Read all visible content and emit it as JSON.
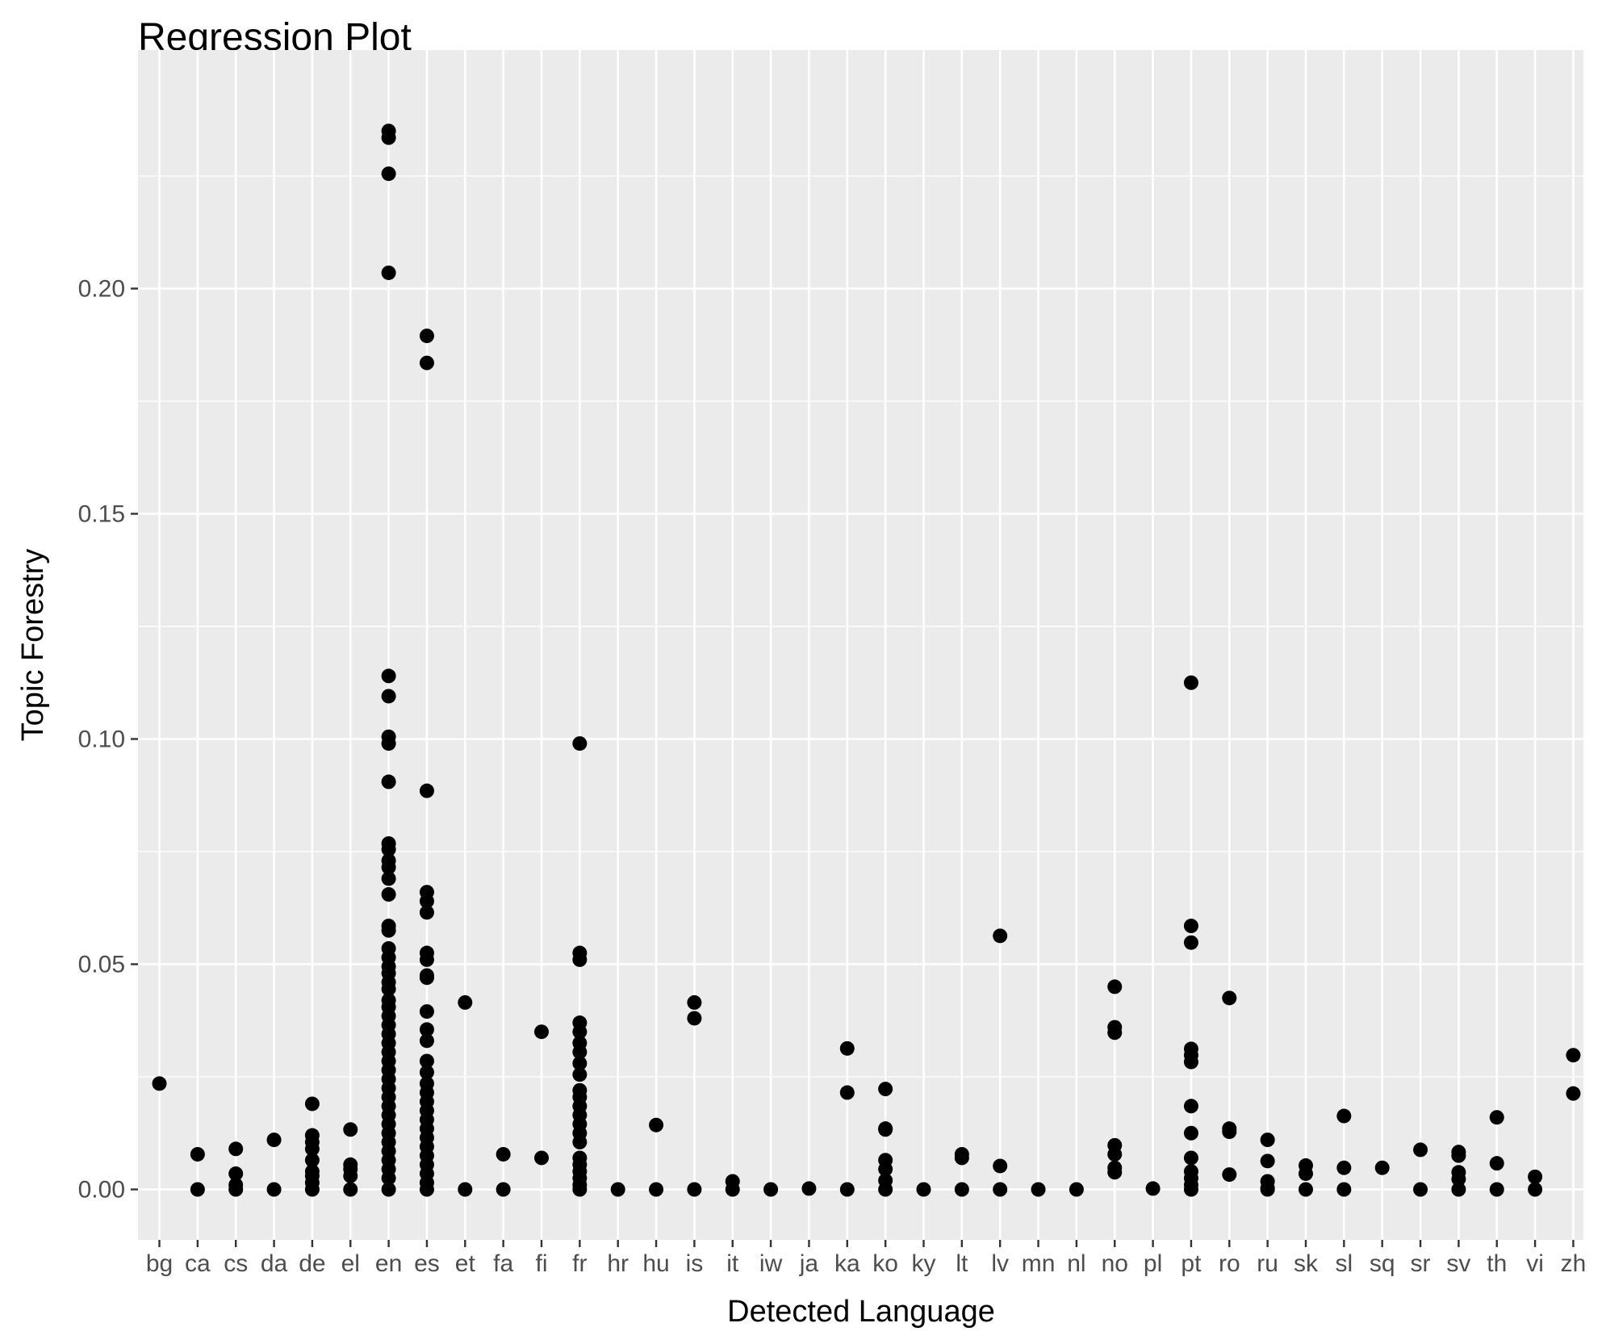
{
  "chart_data": {
    "type": "scatter",
    "title": "Regression Plot",
    "xlabel": "Detected Language",
    "ylabel": "Topic Forestry",
    "categories": [
      "bg",
      "ca",
      "cs",
      "da",
      "de",
      "el",
      "en",
      "es",
      "et",
      "fa",
      "fi",
      "fr",
      "hr",
      "hu",
      "is",
      "it",
      "iw",
      "ja",
      "ka",
      "ko",
      "ky",
      "lt",
      "lv",
      "mn",
      "nl",
      "no",
      "pl",
      "pt",
      "ro",
      "ru",
      "sk",
      "sl",
      "sq",
      "sr",
      "sv",
      "th",
      "vi",
      "zh"
    ],
    "y_ticks": [
      0.0,
      0.05,
      0.1,
      0.15,
      0.2
    ],
    "y_tick_labels": [
      "0.00",
      "0.05",
      "0.10",
      "0.15",
      "0.20"
    ],
    "ylim": [
      -0.012,
      0.246
    ],
    "grid": true,
    "colors": {
      "panel": "#ebebeb",
      "grid": "#ffffff",
      "point": "#000000",
      "tick": "#333333",
      "tick_label": "#4d4d4d"
    },
    "series": [
      {
        "points": [
          {
            "x": "bg",
            "y": 0.0235
          },
          {
            "x": "ca",
            "y": 0.0078
          },
          {
            "x": "ca",
            "y": 0.0
          },
          {
            "x": "cs",
            "y": 0.009
          },
          {
            "x": "cs",
            "y": 0.0035
          },
          {
            "x": "cs",
            "y": 0.001
          },
          {
            "x": "cs",
            "y": 0.0
          },
          {
            "x": "da",
            "y": 0.011
          },
          {
            "x": "da",
            "y": 0.0
          },
          {
            "x": "de",
            "y": 0.019
          },
          {
            "x": "de",
            "y": 0.012
          },
          {
            "x": "de",
            "y": 0.0105
          },
          {
            "x": "de",
            "y": 0.009
          },
          {
            "x": "de",
            "y": 0.0065
          },
          {
            "x": "de",
            "y": 0.004
          },
          {
            "x": "de",
            "y": 0.003
          },
          {
            "x": "de",
            "y": 0.0015
          },
          {
            "x": "de",
            "y": 0.0
          },
          {
            "x": "el",
            "y": 0.0133
          },
          {
            "x": "el",
            "y": 0.0055
          },
          {
            "x": "el",
            "y": 0.0045
          },
          {
            "x": "el",
            "y": 0.003
          },
          {
            "x": "el",
            "y": 0.0
          },
          {
            "x": "en",
            "y": 0.235
          },
          {
            "x": "en",
            "y": 0.2335
          },
          {
            "x": "en",
            "y": 0.2255
          },
          {
            "x": "en",
            "y": 0.2035
          },
          {
            "x": "en",
            "y": 0.114
          },
          {
            "x": "en",
            "y": 0.1095
          },
          {
            "x": "en",
            "y": 0.1005
          },
          {
            "x": "en",
            "y": 0.099
          },
          {
            "x": "en",
            "y": 0.0905
          },
          {
            "x": "en",
            "y": 0.0768
          },
          {
            "x": "en",
            "y": 0.0755
          },
          {
            "x": "en",
            "y": 0.073
          },
          {
            "x": "en",
            "y": 0.0715
          },
          {
            "x": "en",
            "y": 0.069
          },
          {
            "x": "en",
            "y": 0.0655
          },
          {
            "x": "en",
            "y": 0.0585
          },
          {
            "x": "en",
            "y": 0.0575
          },
          {
            "x": "en",
            "y": 0.0535
          },
          {
            "x": "en",
            "y": 0.0515
          },
          {
            "x": "en",
            "y": 0.0495
          },
          {
            "x": "en",
            "y": 0.048
          },
          {
            "x": "en",
            "y": 0.046
          },
          {
            "x": "en",
            "y": 0.0445
          },
          {
            "x": "en",
            "y": 0.042
          },
          {
            "x": "en",
            "y": 0.0405
          },
          {
            "x": "en",
            "y": 0.0385
          },
          {
            "x": "en",
            "y": 0.0365
          },
          {
            "x": "en",
            "y": 0.0345
          },
          {
            "x": "en",
            "y": 0.0325
          },
          {
            "x": "en",
            "y": 0.0305
          },
          {
            "x": "en",
            "y": 0.0285
          },
          {
            "x": "en",
            "y": 0.0265
          },
          {
            "x": "en",
            "y": 0.0245
          },
          {
            "x": "en",
            "y": 0.0225
          },
          {
            "x": "en",
            "y": 0.0205
          },
          {
            "x": "en",
            "y": 0.0185
          },
          {
            "x": "en",
            "y": 0.0165
          },
          {
            "x": "en",
            "y": 0.0145
          },
          {
            "x": "en",
            "y": 0.0125
          },
          {
            "x": "en",
            "y": 0.0105
          },
          {
            "x": "en",
            "y": 0.0085
          },
          {
            "x": "en",
            "y": 0.0065
          },
          {
            "x": "en",
            "y": 0.0045
          },
          {
            "x": "en",
            "y": 0.0025
          },
          {
            "x": "en",
            "y": 0.0
          },
          {
            "x": "es",
            "y": 0.1895
          },
          {
            "x": "es",
            "y": 0.1835
          },
          {
            "x": "es",
            "y": 0.0885
          },
          {
            "x": "es",
            "y": 0.066
          },
          {
            "x": "es",
            "y": 0.064
          },
          {
            "x": "es",
            "y": 0.0615
          },
          {
            "x": "es",
            "y": 0.0525
          },
          {
            "x": "es",
            "y": 0.051
          },
          {
            "x": "es",
            "y": 0.0475
          },
          {
            "x": "es",
            "y": 0.047
          },
          {
            "x": "es",
            "y": 0.0395
          },
          {
            "x": "es",
            "y": 0.0355
          },
          {
            "x": "es",
            "y": 0.033
          },
          {
            "x": "es",
            "y": 0.0285
          },
          {
            "x": "es",
            "y": 0.026
          },
          {
            "x": "es",
            "y": 0.0235
          },
          {
            "x": "es",
            "y": 0.0215
          },
          {
            "x": "es",
            "y": 0.0195
          },
          {
            "x": "es",
            "y": 0.0175
          },
          {
            "x": "es",
            "y": 0.0155
          },
          {
            "x": "es",
            "y": 0.0135
          },
          {
            "x": "es",
            "y": 0.0115
          },
          {
            "x": "es",
            "y": 0.0095
          },
          {
            "x": "es",
            "y": 0.0075
          },
          {
            "x": "es",
            "y": 0.0055
          },
          {
            "x": "es",
            "y": 0.0035
          },
          {
            "x": "es",
            "y": 0.0015
          },
          {
            "x": "es",
            "y": 0.0
          },
          {
            "x": "et",
            "y": 0.0415
          },
          {
            "x": "et",
            "y": 0.0
          },
          {
            "x": "fa",
            "y": 0.0078
          },
          {
            "x": "fa",
            "y": 0.0
          },
          {
            "x": "fi",
            "y": 0.035
          },
          {
            "x": "fi",
            "y": 0.007
          },
          {
            "x": "fr",
            "y": 0.099
          },
          {
            "x": "fr",
            "y": 0.0525
          },
          {
            "x": "fr",
            "y": 0.051
          },
          {
            "x": "fr",
            "y": 0.037
          },
          {
            "x": "fr",
            "y": 0.035
          },
          {
            "x": "fr",
            "y": 0.0325
          },
          {
            "x": "fr",
            "y": 0.0305
          },
          {
            "x": "fr",
            "y": 0.028
          },
          {
            "x": "fr",
            "y": 0.0255
          },
          {
            "x": "fr",
            "y": 0.022
          },
          {
            "x": "fr",
            "y": 0.0205
          },
          {
            "x": "fr",
            "y": 0.0185
          },
          {
            "x": "fr",
            "y": 0.0165
          },
          {
            "x": "fr",
            "y": 0.0145
          },
          {
            "x": "fr",
            "y": 0.0125
          },
          {
            "x": "fr",
            "y": 0.0105
          },
          {
            "x": "fr",
            "y": 0.007
          },
          {
            "x": "fr",
            "y": 0.0055
          },
          {
            "x": "fr",
            "y": 0.004
          },
          {
            "x": "fr",
            "y": 0.0025
          },
          {
            "x": "fr",
            "y": 0.001
          },
          {
            "x": "fr",
            "y": 0.0
          },
          {
            "x": "hr",
            "y": 0.0
          },
          {
            "x": "hu",
            "y": 0.0143
          },
          {
            "x": "hu",
            "y": 0.0
          },
          {
            "x": "is",
            "y": 0.0415
          },
          {
            "x": "is",
            "y": 0.038
          },
          {
            "x": "is",
            "y": 0.0
          },
          {
            "x": "it",
            "y": 0.0018
          },
          {
            "x": "it",
            "y": 0.0
          },
          {
            "x": "iw",
            "y": 0.0
          },
          {
            "x": "ja",
            "y": 0.0002
          },
          {
            "x": "ka",
            "y": 0.0313
          },
          {
            "x": "ka",
            "y": 0.0215
          },
          {
            "x": "ka",
            "y": 0.0
          },
          {
            "x": "ko",
            "y": 0.0223
          },
          {
            "x": "ko",
            "y": 0.0135
          },
          {
            "x": "ko",
            "y": 0.0133
          },
          {
            "x": "ko",
            "y": 0.0065
          },
          {
            "x": "ko",
            "y": 0.0045
          },
          {
            "x": "ko",
            "y": 0.002
          },
          {
            "x": "ko",
            "y": 0.0
          },
          {
            "x": "ky",
            "y": 0.0
          },
          {
            "x": "lt",
            "y": 0.0078
          },
          {
            "x": "lt",
            "y": 0.007
          },
          {
            "x": "lt",
            "y": 0.0
          },
          {
            "x": "lv",
            "y": 0.0563
          },
          {
            "x": "lv",
            "y": 0.0052
          },
          {
            "x": "lv",
            "y": 0.0
          },
          {
            "x": "mn",
            "y": 0.0
          },
          {
            "x": "nl",
            "y": 0.0
          },
          {
            "x": "no",
            "y": 0.045
          },
          {
            "x": "no",
            "y": 0.036
          },
          {
            "x": "no",
            "y": 0.0348
          },
          {
            "x": "no",
            "y": 0.0098
          },
          {
            "x": "no",
            "y": 0.0078
          },
          {
            "x": "no",
            "y": 0.0048
          },
          {
            "x": "no",
            "y": 0.0038
          },
          {
            "x": "pl",
            "y": 0.0002
          },
          {
            "x": "pt",
            "y": 0.1125
          },
          {
            "x": "pt",
            "y": 0.0585
          },
          {
            "x": "pt",
            "y": 0.0548
          },
          {
            "x": "pt",
            "y": 0.0312
          },
          {
            "x": "pt",
            "y": 0.0298
          },
          {
            "x": "pt",
            "y": 0.0283
          },
          {
            "x": "pt",
            "y": 0.0185
          },
          {
            "x": "pt",
            "y": 0.0125
          },
          {
            "x": "pt",
            "y": 0.007
          },
          {
            "x": "pt",
            "y": 0.004
          },
          {
            "x": "pt",
            "y": 0.0025
          },
          {
            "x": "pt",
            "y": 0.001
          },
          {
            "x": "pt",
            "y": 0.0
          },
          {
            "x": "ro",
            "y": 0.0425
          },
          {
            "x": "ro",
            "y": 0.0135
          },
          {
            "x": "ro",
            "y": 0.0128
          },
          {
            "x": "ro",
            "y": 0.0033
          },
          {
            "x": "ru",
            "y": 0.011
          },
          {
            "x": "ru",
            "y": 0.0063
          },
          {
            "x": "ru",
            "y": 0.0018
          },
          {
            "x": "ru",
            "y": 0.0003
          },
          {
            "x": "ru",
            "y": 0.0
          },
          {
            "x": "sk",
            "y": 0.0053
          },
          {
            "x": "sk",
            "y": 0.0035
          },
          {
            "x": "sk",
            "y": 0.0
          },
          {
            "x": "sl",
            "y": 0.0163
          },
          {
            "x": "sl",
            "y": 0.0048
          },
          {
            "x": "sl",
            "y": 0.0
          },
          {
            "x": "sq",
            "y": 0.0048
          },
          {
            "x": "sr",
            "y": 0.0088
          },
          {
            "x": "sr",
            "y": 0.0
          },
          {
            "x": "sv",
            "y": 0.0083
          },
          {
            "x": "sv",
            "y": 0.0075
          },
          {
            "x": "sv",
            "y": 0.0038
          },
          {
            "x": "sv",
            "y": 0.0023
          },
          {
            "x": "sv",
            "y": 0.0
          },
          {
            "x": "th",
            "y": 0.016
          },
          {
            "x": "th",
            "y": 0.0058
          },
          {
            "x": "th",
            "y": 0.0
          },
          {
            "x": "vi",
            "y": 0.0028
          },
          {
            "x": "vi",
            "y": 0.0
          },
          {
            "x": "zh",
            "y": 0.0298
          },
          {
            "x": "zh",
            "y": 0.0213
          }
        ]
      }
    ]
  }
}
